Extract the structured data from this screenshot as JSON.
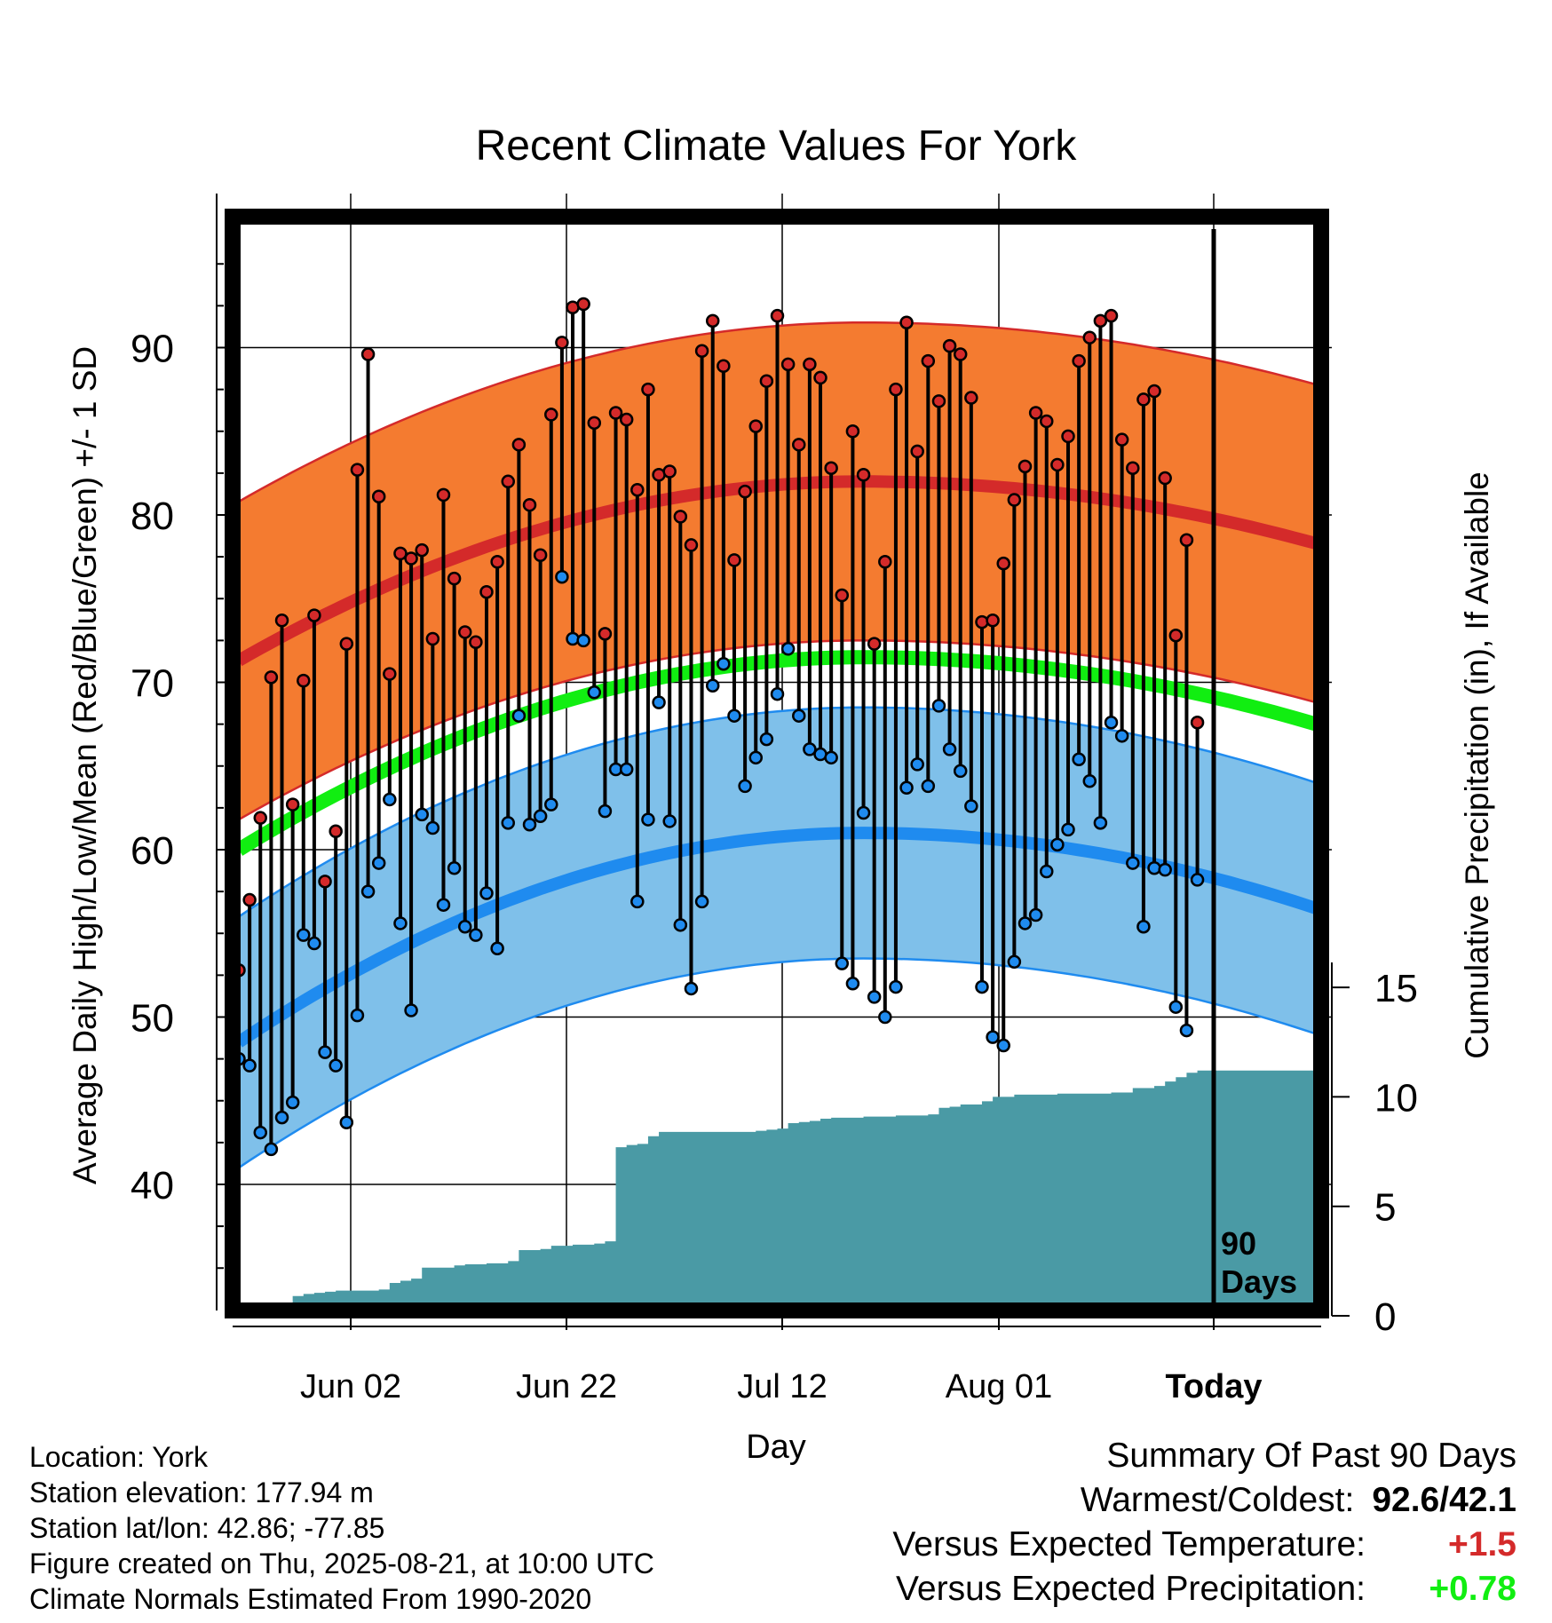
{
  "chart_data": {
    "type": "line",
    "title": "Recent Climate Values For York",
    "xlabel": "Day",
    "ylabel": "Average Daily High/Low/Mean (Red/Blue/Green) +/- 1 SD",
    "y2label": "Cumulative Precipitation (in), If Available",
    "x_tick_labels": [
      "Jun 02",
      "Jun 22",
      "Jul 12",
      "Aug 01",
      "Today"
    ],
    "y_tick_labels": [
      "40",
      "50",
      "60",
      "70",
      "80",
      "90"
    ],
    "y2_tick_labels": [
      "0",
      "5",
      "10",
      "15"
    ],
    "ylim": [
      32.5,
      97.5
    ],
    "y2lim": [
      0,
      15
    ],
    "marker_label": "90 Days",
    "grid": true,
    "colors": {
      "high_band": "#f47b30",
      "high_mean": "#d42a2a",
      "low_band": "#7fc0ea",
      "low_mean": "#1f8bef",
      "mean": "#11ee11",
      "precip": "#4a9aa5",
      "high_marker": "#d42a2a",
      "low_marker": "#1f8bef"
    },
    "normals": {
      "high_mean": [
        71.3,
        82.0,
        78.3
      ],
      "high_sd": 9.5,
      "low_mean": [
        48.5,
        61.0,
        56.5
      ],
      "low_sd": 7.5,
      "mean": [
        60.0,
        71.5,
        67.5
      ]
    },
    "highs": [
      52.8,
      57.0,
      61.9,
      70.3,
      73.7,
      62.7,
      70.1,
      74.0,
      58.1,
      61.1,
      72.3,
      82.7,
      89.6,
      81.1,
      70.5,
      77.7,
      77.4,
      77.9,
      72.6,
      81.2,
      76.2,
      73.0,
      72.4,
      75.4,
      77.2,
      82.0,
      84.2,
      80.6,
      77.6,
      86.0,
      90.3,
      92.4,
      92.6,
      85.5,
      72.9,
      86.1,
      85.7,
      81.5,
      87.5,
      82.4,
      82.6,
      79.9,
      78.2,
      89.8,
      91.6,
      88.9,
      77.3,
      81.4,
      85.3,
      88.0,
      91.9,
      89.0,
      84.2,
      89.0,
      88.2,
      82.8,
      75.2,
      85.0,
      82.4,
      72.3,
      77.2,
      87.5,
      91.5,
      83.8,
      89.2,
      86.8,
      90.1,
      89.6,
      87.0,
      73.6,
      73.7,
      77.1,
      80.9,
      82.9,
      86.1,
      85.6,
      83.0,
      84.7,
      89.2,
      90.6,
      91.6,
      91.9,
      84.5,
      82.8,
      86.9,
      87.4,
      82.2,
      72.8,
      78.5,
      67.6
    ],
    "lows": [
      47.5,
      47.1,
      43.1,
      42.1,
      44.0,
      44.9,
      54.9,
      54.4,
      47.9,
      47.1,
      43.7,
      50.1,
      57.5,
      59.2,
      63.0,
      55.6,
      50.4,
      62.1,
      61.3,
      56.7,
      58.9,
      55.4,
      54.9,
      57.4,
      54.1,
      61.6,
      68.0,
      61.5,
      62.0,
      62.7,
      76.3,
      72.6,
      72.5,
      69.4,
      62.3,
      64.8,
      64.8,
      56.9,
      61.8,
      68.8,
      61.7,
      55.5,
      51.7,
      56.9,
      69.8,
      71.1,
      68.0,
      63.8,
      65.5,
      66.6,
      69.3,
      72.0,
      68.0,
      66.0,
      65.7,
      65.5,
      53.2,
      52.0,
      62.2,
      51.2,
      50.0,
      51.8,
      63.7,
      65.1,
      63.8,
      68.6,
      66.0,
      64.7,
      62.6,
      51.8,
      48.8,
      48.3,
      53.3,
      55.6,
      56.1,
      58.7,
      60.3,
      61.2,
      65.4,
      64.1,
      61.6,
      67.6,
      66.8,
      59.2,
      55.4,
      58.9,
      58.8,
      50.6,
      49.2,
      58.2
    ],
    "precip_cumulative": [
      0,
      0,
      0,
      0,
      0,
      0.9,
      1.0,
      1.05,
      1.1,
      1.15,
      1.15,
      1.15,
      1.15,
      1.2,
      1.5,
      1.6,
      1.7,
      2.2,
      2.2,
      2.2,
      2.3,
      2.35,
      2.35,
      2.4,
      2.4,
      2.5,
      3.0,
      3.0,
      3.05,
      3.2,
      3.2,
      3.25,
      3.25,
      3.3,
      3.4,
      7.7,
      7.8,
      7.85,
      8.2,
      8.4,
      8.4,
      8.4,
      8.4,
      8.4,
      8.4,
      8.4,
      8.4,
      8.4,
      8.45,
      8.5,
      8.55,
      8.8,
      8.85,
      8.9,
      9.0,
      9.05,
      9.05,
      9.05,
      9.1,
      9.1,
      9.1,
      9.15,
      9.15,
      9.15,
      9.2,
      9.5,
      9.55,
      9.65,
      9.65,
      9.8,
      10.0,
      10.0,
      10.1,
      10.1,
      10.1,
      10.1,
      10.15,
      10.15,
      10.15,
      10.15,
      10.15,
      10.2,
      10.2,
      10.4,
      10.4,
      10.5,
      10.7,
      10.9,
      11.1,
      11.2
    ]
  },
  "footer": {
    "location": "Location: York",
    "elevation": "Station elevation: 177.94 m",
    "latlon": "Station lat/lon: 42.86; -77.85",
    "created": "Figure created on Thu, 2025-08-21, at 10:00 UTC",
    "normals": "Climate Normals Estimated From 1990-2020"
  },
  "summary": {
    "title": "Summary Of Past 90 Days",
    "warm_cold_label": "Warmest/Coldest:",
    "warm_cold_value": "92.6/42.1",
    "temp_label": "Versus Expected Temperature:",
    "temp_value": "+1.5",
    "temp_color": "#d42a2a",
    "precip_label": "Versus Expected Precipitation:",
    "precip_value": "+0.78",
    "precip_color": "#11ee11"
  }
}
